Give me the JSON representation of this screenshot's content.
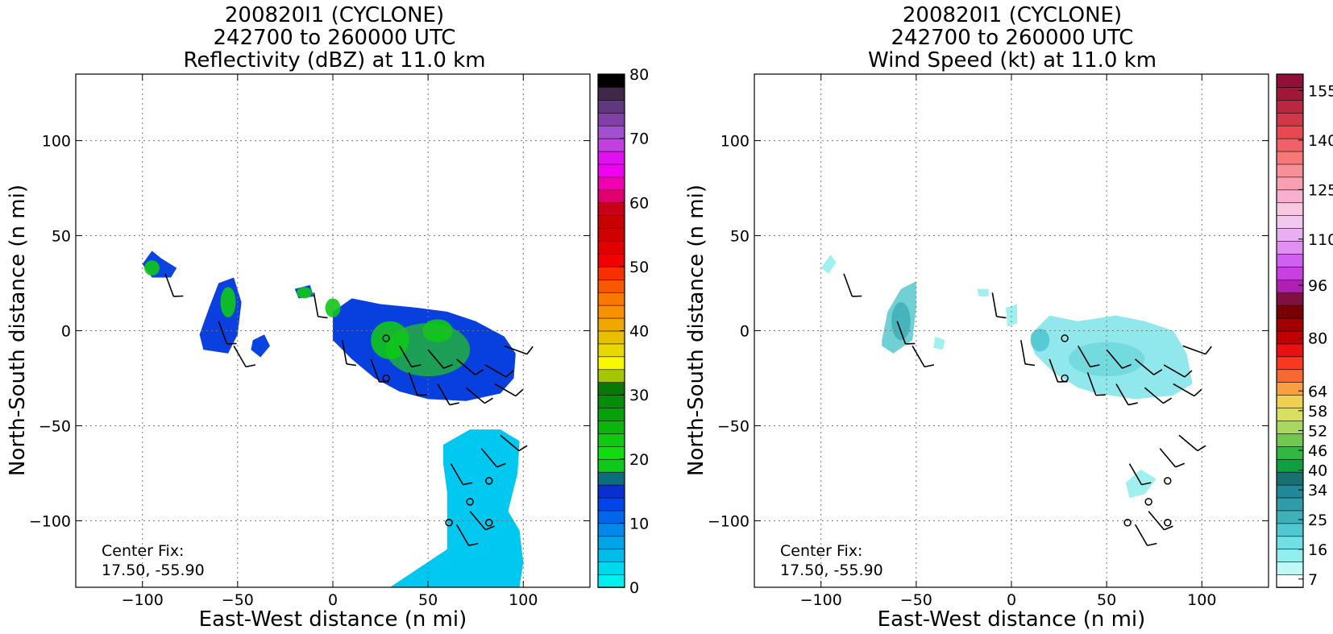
{
  "chart_data": [
    {
      "type": "heatmap",
      "title_lines": [
        "200820I1 (CYCLONE)",
        "242700 to 260000 UTC",
        "Reflectivity (dBZ) at 11.0 km"
      ],
      "xlabel": "East-West distance (n mi)",
      "ylabel": "North-South distance (n mi)",
      "xlim": [
        -135,
        135
      ],
      "ylim": [
        -135,
        135
      ],
      "xticks": [
        -100,
        -50,
        0,
        50,
        100
      ],
      "yticks": [
        -100,
        -50,
        0,
        50,
        100
      ],
      "xtick_labels": [
        "−100",
        "−50",
        "0",
        "50",
        "100"
      ],
      "ytick_labels": [
        "−100",
        "−50",
        "0",
        "50",
        "100"
      ],
      "grid": true,
      "annotation_lines": [
        "Center Fix:",
        "17.50, -55.90"
      ],
      "colorbar": {
        "min": 0,
        "max": 80,
        "step": 2.5,
        "tick_values": [
          0,
          10,
          20,
          30,
          40,
          50,
          60,
          70,
          80
        ],
        "tick_labels": [
          "0",
          "10",
          "20",
          "30",
          "40",
          "50",
          "60",
          "70",
          "80"
        ],
        "colors": [
          "#00f0f0",
          "#00d8ee",
          "#00bce8",
          "#00a4e8",
          "#0088ec",
          "#0066ec",
          "#0044ea",
          "#0a2fd0",
          "#0c6e7c",
          "#10c818",
          "#10dc10",
          "#10c810",
          "#0cb40c",
          "#08a008",
          "#068c06",
          "#087808",
          "#a4c800",
          "#f8f800",
          "#e8d800",
          "#e8c000",
          "#f0a800",
          "#f89000",
          "#f87800",
          "#f85800",
          "#f83000",
          "#f00000",
          "#e00000",
          "#d00000",
          "#c80000",
          "#c80018",
          "#e00070",
          "#f000b0",
          "#f000f0",
          "#e010f0",
          "#c040e0",
          "#a050d0",
          "#8040a8",
          "#603880",
          "#402848",
          "#000000"
        ]
      },
      "echo_regions": [
        {
          "kind": "main",
          "points": [
            [
              0,
              10
            ],
            [
              10,
              17
            ],
            [
              25,
              14
            ],
            [
              45,
              12
            ],
            [
              60,
              10
            ],
            [
              75,
              5
            ],
            [
              90,
              -3
            ],
            [
              96,
              -12
            ],
            [
              95,
              -25
            ],
            [
              88,
              -33
            ],
            [
              70,
              -37
            ],
            [
              50,
              -36
            ],
            [
              35,
              -32
            ],
            [
              22,
              -25
            ],
            [
              10,
              -15
            ],
            [
              0,
              -5
            ]
          ],
          "color": "#0840e0"
        },
        {
          "kind": "south",
          "points": [
            [
              58,
              -60
            ],
            [
              72,
              -52
            ],
            [
              88,
              -52
            ],
            [
              98,
              -58
            ],
            [
              97,
              -75
            ],
            [
              92,
              -95
            ],
            [
              98,
              -105
            ],
            [
              100,
              -122
            ],
            [
              98,
              -135
            ],
            [
              30,
              -135
            ],
            [
              45,
              -125
            ],
            [
              60,
              -115
            ],
            [
              60,
              -85
            ],
            [
              58,
              -70
            ]
          ],
          "color": "#00c8f0"
        },
        {
          "kind": "west",
          "points": [
            [
              -70,
              -2
            ],
            [
              -65,
              12
            ],
            [
              -60,
              25
            ],
            [
              -52,
              28
            ],
            [
              -48,
              15
            ],
            [
              -50,
              -2
            ],
            [
              -55,
              -12
            ],
            [
              -68,
              -10
            ]
          ],
          "color": "#0a40e0"
        },
        {
          "kind": "northwest",
          "points": [
            [
              -100,
              35
            ],
            [
              -95,
              42
            ],
            [
              -90,
              38
            ],
            [
              -82,
              33
            ],
            [
              -85,
              28
            ],
            [
              -95,
              28
            ]
          ],
          "color": "#0a44e0"
        },
        {
          "kind": "small-1",
          "points": [
            [
              -42,
              -5
            ],
            [
              -36,
              -2
            ],
            [
              -33,
              -8
            ],
            [
              -38,
              -14
            ],
            [
              -43,
              -10
            ]
          ],
          "color": "#0a44e0"
        },
        {
          "kind": "small-2",
          "points": [
            [
              -20,
              22
            ],
            [
              -12,
              24
            ],
            [
              -10,
              18
            ],
            [
              -18,
              17
            ]
          ],
          "color": "#0a44e0"
        }
      ],
      "embedded_cells": [
        {
          "center": [
            50,
            -10
          ],
          "radius": [
            22,
            14
          ],
          "color": "#20a848"
        },
        {
          "center": [
            30,
            -5
          ],
          "radius": [
            10,
            10
          ],
          "color": "#10c818"
        },
        {
          "center": [
            55,
            0
          ],
          "radius": [
            8,
            6
          ],
          "color": "#10c818"
        },
        {
          "center": [
            -95,
            33
          ],
          "radius": [
            4,
            4
          ],
          "color": "#10c818"
        },
        {
          "center": [
            -55,
            15
          ],
          "radius": [
            4,
            8
          ],
          "color": "#10c818"
        },
        {
          "center": [
            0,
            12
          ],
          "radius": [
            4,
            5
          ],
          "color": "#10c818"
        },
        {
          "center": [
            -15,
            20
          ],
          "radius": [
            4,
            3
          ],
          "color": "#10c818"
        }
      ],
      "ring_markers": [
        [
          28,
          -4
        ],
        [
          28,
          -25
        ],
        [
          82,
          -79
        ],
        [
          72,
          -90
        ],
        [
          61,
          -101
        ],
        [
          82,
          -101
        ]
      ],
      "wind_barbs": [
        [
          5,
          -5,
          -80
        ],
        [
          20,
          -15,
          -70
        ],
        [
          35,
          -8,
          -60
        ],
        [
          50,
          -10,
          -50
        ],
        [
          65,
          -15,
          -40
        ],
        [
          80,
          -18,
          -30
        ],
        [
          90,
          -8,
          -20
        ],
        [
          85,
          -28,
          -30
        ],
        [
          70,
          -30,
          -40
        ],
        [
          55,
          -28,
          -60
        ],
        [
          40,
          -22,
          -70
        ],
        [
          -60,
          5,
          -70
        ],
        [
          -52,
          -8,
          -60
        ],
        [
          -88,
          30,
          -70
        ],
        [
          -10,
          20,
          -80
        ],
        [
          62,
          -70,
          -60
        ],
        [
          78,
          -62,
          -50
        ],
        [
          88,
          -55,
          -40
        ],
        [
          72,
          -95,
          -50
        ],
        [
          65,
          -102,
          -60
        ]
      ]
    },
    {
      "type": "heatmap",
      "title_lines": [
        "200820I1 (CYCLONE)",
        "242700 to 260000 UTC",
        "Wind Speed (kt) at 11.0 km"
      ],
      "xlabel": "East-West distance (n mi)",
      "ylabel": "North-South distance (n mi)",
      "xlim": [
        -135,
        135
      ],
      "ylim": [
        -135,
        135
      ],
      "xticks": [
        -100,
        -50,
        0,
        50,
        100
      ],
      "yticks": [
        -100,
        -50,
        0,
        50,
        100
      ],
      "xtick_labels": [
        "−100",
        "−50",
        "0",
        "50",
        "100"
      ],
      "ytick_labels": [
        "−100",
        "−50",
        "0",
        "50",
        "100"
      ],
      "grid": true,
      "annotation_lines": [
        "Center Fix:",
        "17.50, -55.90"
      ],
      "colorbar": {
        "min": 4.5,
        "max": 160,
        "step": 4.5,
        "tick_values": [
          7,
          16,
          25,
          34,
          40,
          46,
          52,
          58,
          64,
          80,
          96,
          110,
          125,
          140,
          155
        ],
        "tick_labels": [
          "7",
          "16",
          "25",
          "34",
          "40",
          "46",
          "52",
          "58",
          "64",
          "80",
          "96",
          "110",
          "125",
          "140",
          "155"
        ],
        "colors": [
          "#ffffff",
          "#c0f8f8",
          "#90f0f0",
          "#70e0e4",
          "#50c8d0",
          "#40b0b8",
          "#309ca8",
          "#208898",
          "#187070",
          "#10a040",
          "#30b840",
          "#70c850",
          "#a8d860",
          "#d8e060",
          "#f0d050",
          "#f8a040",
          "#f86830",
          "#f83820",
          "#e81010",
          "#c00000",
          "#a00000",
          "#780000",
          "#801040",
          "#b020b0",
          "#c840e0",
          "#d060f0",
          "#e090f0",
          "#e8b0f0",
          "#f0c8f0",
          "#f8c8e0",
          "#f8b0d0",
          "#f8a0b0",
          "#f89098",
          "#f87878",
          "#f06068",
          "#e84850",
          "#d03848",
          "#b82840",
          "#a01838",
          "#901038"
        ]
      },
      "echo_regions": [
        {
          "kind": "main",
          "points": [
            [
              10,
              -2
            ],
            [
              20,
              8
            ],
            [
              35,
              5
            ],
            [
              55,
              8
            ],
            [
              70,
              5
            ],
            [
              85,
              0
            ],
            [
              92,
              -12
            ],
            [
              95,
              -28
            ],
            [
              85,
              -34
            ],
            [
              65,
              -36
            ],
            [
              45,
              -33
            ],
            [
              35,
              -30
            ],
            [
              22,
              -22
            ],
            [
              12,
              -12
            ]
          ],
          "color": "#90e8ec"
        },
        {
          "kind": "west",
          "points": [
            [
              -68,
              -5
            ],
            [
              -65,
              10
            ],
            [
              -58,
              22
            ],
            [
              -50,
              26
            ],
            [
              -50,
              12
            ],
            [
              -52,
              -5
            ],
            [
              -62,
              -12
            ],
            [
              -68,
              -8
            ]
          ],
          "color": "#70d0d4"
        },
        {
          "kind": "northwest",
          "points": [
            [
              -100,
              33
            ],
            [
              -95,
              40
            ],
            [
              -92,
              36
            ],
            [
              -96,
              30
            ]
          ],
          "color": "#a0f0f0"
        },
        {
          "kind": "south",
          "points": [
            [
              60,
              -80
            ],
            [
              68,
              -73
            ],
            [
              76,
              -78
            ],
            [
              70,
              -86
            ],
            [
              62,
              -88
            ]
          ],
          "color": "#a0f0f0"
        },
        {
          "kind": "small-1",
          "points": [
            [
              -40,
              -3
            ],
            [
              -35,
              -5
            ],
            [
              -36,
              -10
            ],
            [
              -41,
              -9
            ]
          ],
          "color": "#a0f0f0"
        },
        {
          "kind": "small-2",
          "points": [
            [
              -18,
              22
            ],
            [
              -12,
              22
            ],
            [
              -12,
              18
            ],
            [
              -17,
              18
            ]
          ],
          "color": "#a0f0f0"
        },
        {
          "kind": "small-3",
          "points": [
            [
              -3,
              12
            ],
            [
              3,
              14
            ],
            [
              3,
              4
            ],
            [
              -2,
              2
            ]
          ],
          "color": "#a0f0f0"
        }
      ],
      "embedded_cells": [
        {
          "center": [
            50,
            -15
          ],
          "radius": [
            20,
            9
          ],
          "color": "#70d8dc"
        },
        {
          "center": [
            -58,
            5
          ],
          "radius": [
            5,
            10
          ],
          "color": "#40b0b8"
        },
        {
          "center": [
            15,
            -5
          ],
          "radius": [
            5,
            6
          ],
          "color": "#50c8d0"
        }
      ],
      "ring_markers": [
        [
          28,
          -4
        ],
        [
          28,
          -25
        ],
        [
          82,
          -79
        ],
        [
          72,
          -90
        ],
        [
          61,
          -101
        ],
        [
          82,
          -101
        ]
      ],
      "wind_barbs": [
        [
          5,
          -5,
          -80
        ],
        [
          20,
          -15,
          -70
        ],
        [
          35,
          -8,
          -60
        ],
        [
          50,
          -10,
          -50
        ],
        [
          65,
          -15,
          -40
        ],
        [
          80,
          -18,
          -30
        ],
        [
          90,
          -8,
          -20
        ],
        [
          85,
          -28,
          -30
        ],
        [
          70,
          -30,
          -40
        ],
        [
          55,
          -28,
          -60
        ],
        [
          40,
          -22,
          -70
        ],
        [
          -60,
          5,
          -70
        ],
        [
          -52,
          -8,
          -60
        ],
        [
          -88,
          30,
          -70
        ],
        [
          -10,
          20,
          -80
        ],
        [
          62,
          -70,
          -60
        ],
        [
          78,
          -62,
          -50
        ],
        [
          88,
          -55,
          -40
        ],
        [
          72,
          -95,
          -50
        ],
        [
          65,
          -102,
          -60
        ]
      ]
    }
  ]
}
